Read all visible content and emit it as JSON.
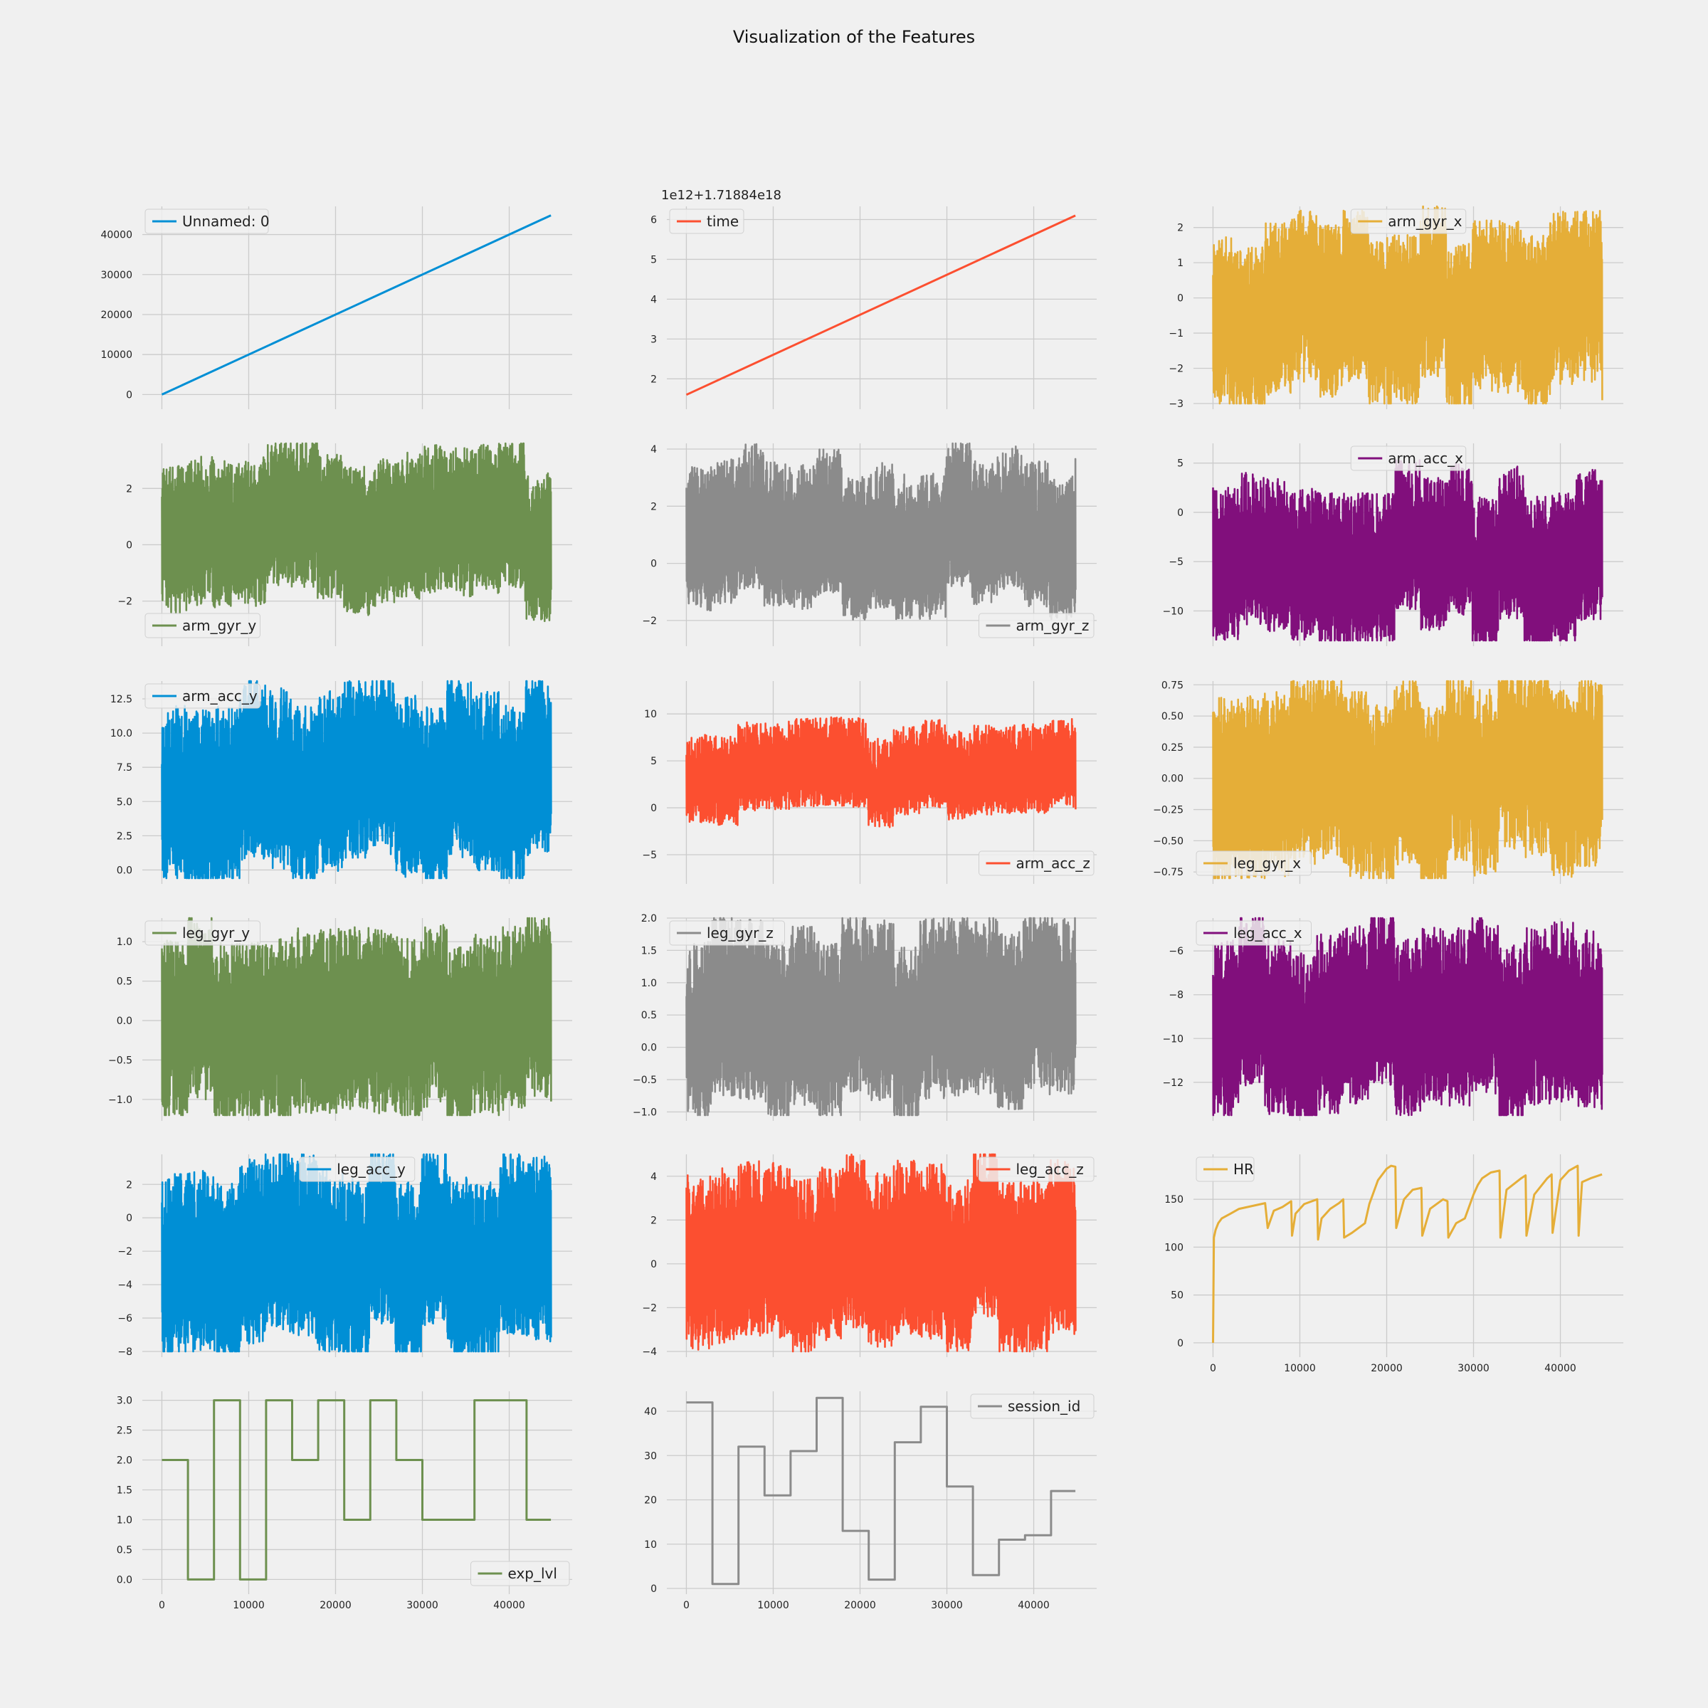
{
  "title": "Visualization of the Features",
  "x_ticks": [
    0,
    10000,
    20000,
    30000,
    40000
  ],
  "x_tick_labels": [
    "0",
    "10000",
    "20000",
    "30000",
    "40000"
  ],
  "x_range": [
    -2250,
    47250
  ],
  "chart_data": [
    {
      "id": "unnamed0",
      "type": "line",
      "row": 0,
      "col": 0,
      "series": [
        {
          "name": "Unnamed: 0"
        }
      ],
      "color": "#008fd5",
      "pattern": "linear",
      "x": [
        0,
        44800
      ],
      "y": [
        0,
        44800
      ],
      "ylim": [
        -2240,
        47040
      ],
      "yticks": [
        0,
        10000,
        20000,
        30000,
        40000
      ],
      "ytick_labels": [
        "0",
        "10000",
        "20000",
        "30000",
        "40000"
      ],
      "legend_loc": "upper left",
      "show_xticks": false
    },
    {
      "id": "time",
      "type": "line",
      "row": 0,
      "col": 1,
      "series": [
        {
          "name": "time"
        }
      ],
      "color": "#fc4f30",
      "pattern": "linear",
      "x": [
        0,
        44800
      ],
      "y": [
        1.6,
        6.1
      ],
      "ylim": [
        1.38,
        6.33
      ],
      "yticks": [
        2,
        3,
        4,
        5,
        6
      ],
      "ytick_labels": [
        "2",
        "3",
        "4",
        "5",
        "6"
      ],
      "legend_loc": "upper left",
      "offset_text": "1e12+1.71884e18",
      "show_xticks": false
    },
    {
      "id": "arm_gyr_x",
      "type": "line",
      "row": 0,
      "col": 2,
      "series": [
        {
          "name": "arm_gyr_x"
        }
      ],
      "color": "#e5ae38",
      "pattern": "noise",
      "seed": 11,
      "x": [
        0,
        44800
      ],
      "center": -0.25,
      "amp_lo": 2.6,
      "amp_hi": 2.3,
      "ylim": [
        -3.0,
        2.6
      ],
      "yticks": [
        -3,
        -2,
        -1,
        0,
        1,
        2
      ],
      "ytick_labels": [
        "−3",
        "−2",
        "−1",
        "0",
        "1",
        "2"
      ],
      "legend_loc": "upper center",
      "show_xticks": false
    },
    {
      "id": "arm_gyr_y",
      "type": "line",
      "row": 1,
      "col": 0,
      "series": [
        {
          "name": "arm_gyr_y"
        }
      ],
      "color": "#6d904f",
      "pattern": "noise",
      "seed": 23,
      "x": [
        0,
        44800
      ],
      "center": 0.4,
      "amp_lo": 2.5,
      "amp_hi": 2.8,
      "ylim": [
        -3.4,
        3.6
      ],
      "yticks": [
        -2,
        0,
        2
      ],
      "ytick_labels": [
        "−2",
        "0",
        "2"
      ],
      "legend_loc": "lower left",
      "show_xticks": false
    },
    {
      "id": "arm_gyr_z",
      "type": "line",
      "row": 1,
      "col": 1,
      "series": [
        {
          "name": "arm_gyr_z"
        }
      ],
      "color": "#8b8b8b",
      "pattern": "noise",
      "seed": 37,
      "x": [
        0,
        44800
      ],
      "center": 0.6,
      "amp_lo": 2.0,
      "amp_hi": 3.1,
      "ylim": [
        -2.7,
        4.2
      ],
      "yticks": [
        -2,
        0,
        2,
        4
      ],
      "ytick_labels": [
        "−2",
        "0",
        "2",
        "4"
      ],
      "legend_loc": "lower right",
      "show_xticks": false
    },
    {
      "id": "arm_acc_x",
      "type": "line",
      "row": 1,
      "col": 2,
      "series": [
        {
          "name": "arm_acc_x"
        }
      ],
      "color": "#810f7c",
      "pattern": "noise",
      "seed": 41,
      "x": [
        0,
        44800
      ],
      "center": -5.5,
      "amp_lo": 6.5,
      "amp_hi": 9.0,
      "ylim": [
        -13.0,
        7.0
      ],
      "yticks": [
        -10,
        -5,
        0,
        5
      ],
      "ytick_labels": [
        "−10",
        "−5",
        "0",
        "5"
      ],
      "legend_loc": "upper center",
      "show_xticks": false
    },
    {
      "id": "arm_acc_y",
      "type": "line",
      "row": 2,
      "col": 0,
      "series": [
        {
          "name": "arm_acc_y"
        }
      ],
      "color": "#008fd5",
      "pattern": "noise",
      "seed": 53,
      "x": [
        0,
        44800
      ],
      "center": 5.5,
      "amp_lo": 5.8,
      "amp_hi": 7.5,
      "ylim": [
        -0.6,
        13.8
      ],
      "yticks": [
        0,
        2.5,
        5,
        7.5,
        10,
        12.5
      ],
      "ytick_labels": [
        "0.0",
        "2.5",
        "5.0",
        "7.5",
        "10.0",
        "12.5"
      ],
      "legend_loc": "upper left",
      "show_xticks": false
    },
    {
      "id": "arm_acc_z",
      "type": "line",
      "row": 2,
      "col": 1,
      "series": [
        {
          "name": "arm_acc_z"
        }
      ],
      "color": "#fc4f30",
      "pattern": "noise",
      "seed": 67,
      "x": [
        0,
        44800
      ],
      "center": 3.0,
      "amp_lo": 4.0,
      "amp_hi": 5.5,
      "ylim": [
        -7.5,
        13.5
      ],
      "yticks": [
        -5,
        0,
        5,
        10
      ],
      "ytick_labels": [
        "−5",
        "0",
        "5",
        "10"
      ],
      "legend_loc": "lower right",
      "show_xticks": false
    },
    {
      "id": "leg_gyr_x",
      "type": "line",
      "row": 2,
      "col": 2,
      "series": [
        {
          "name": "leg_gyr_x"
        }
      ],
      "color": "#e5ae38",
      "pattern": "noise",
      "seed": 71,
      "x": [
        0,
        44800
      ],
      "center": 0.05,
      "amp_lo": 0.8,
      "amp_hi": 0.7,
      "ylim": [
        -0.8,
        0.78
      ],
      "yticks": [
        -0.75,
        -0.5,
        -0.25,
        0,
        0.25,
        0.5,
        0.75
      ],
      "ytick_labels": [
        "−0.75",
        "−0.50",
        "−0.25",
        "0.00",
        "0.25",
        "0.50",
        "0.75"
      ],
      "legend_loc": "lower left",
      "show_xticks": false
    },
    {
      "id": "leg_gyr_y",
      "type": "line",
      "row": 3,
      "col": 0,
      "series": [
        {
          "name": "leg_gyr_y"
        }
      ],
      "color": "#6d904f",
      "pattern": "noise",
      "seed": 83,
      "x": [
        0,
        44800
      ],
      "center": 0.0,
      "amp_lo": 1.15,
      "amp_hi": 1.2,
      "ylim": [
        -1.2,
        1.3
      ],
      "yticks": [
        -1.0,
        -0.5,
        0,
        0.5,
        1.0
      ],
      "ytick_labels": [
        "−1.0",
        "−0.5",
        "0.0",
        "0.5",
        "1.0"
      ],
      "legend_loc": "upper left",
      "show_xticks": false
    },
    {
      "id": "leg_gyr_z",
      "type": "line",
      "row": 3,
      "col": 1,
      "series": [
        {
          "name": "leg_gyr_z"
        }
      ],
      "color": "#8b8b8b",
      "pattern": "noise",
      "seed": 97,
      "x": [
        0,
        44800
      ],
      "center": 0.35,
      "amp_lo": 1.3,
      "amp_hi": 1.5,
      "ylim": [
        -1.05,
        2.0
      ],
      "yticks": [
        -1.0,
        -0.5,
        0,
        0.5,
        1.0,
        1.5,
        2.0
      ],
      "ytick_labels": [
        "−1.0",
        "−0.5",
        "0.0",
        "0.5",
        "1.0",
        "1.5",
        "2.0"
      ],
      "legend_loc": "upper left",
      "show_xticks": false
    },
    {
      "id": "leg_acc_x",
      "type": "line",
      "row": 3,
      "col": 2,
      "series": [
        {
          "name": "leg_acc_x"
        }
      ],
      "color": "#810f7c",
      "pattern": "noise",
      "seed": 101,
      "x": [
        0,
        44800
      ],
      "center": -9.5,
      "amp_lo": 3.7,
      "amp_hi": 4.5,
      "ylim": [
        -13.5,
        -4.5
      ],
      "yticks": [
        -12,
        -10,
        -8,
        -6
      ],
      "ytick_labels": [
        "−12",
        "−10",
        "−8",
        "−6"
      ],
      "legend_loc": "upper left",
      "show_xticks": false
    },
    {
      "id": "leg_acc_y",
      "type": "line",
      "row": 4,
      "col": 0,
      "series": [
        {
          "name": "leg_acc_y"
        }
      ],
      "color": "#008fd5",
      "pattern": "noise",
      "seed": 113,
      "x": [
        0,
        44800
      ],
      "center": -2.5,
      "amp_lo": 5.3,
      "amp_hi": 5.8,
      "ylim": [
        -8.0,
        3.8
      ],
      "yticks": [
        -8,
        -6,
        -4,
        -2,
        0,
        2
      ],
      "ytick_labels": [
        "−8",
        "−6",
        "−4",
        "−2",
        "0",
        "2"
      ],
      "legend_loc": "upper center",
      "show_xticks": false
    },
    {
      "id": "leg_acc_z",
      "type": "line",
      "row": 4,
      "col": 1,
      "series": [
        {
          "name": "leg_acc_z"
        }
      ],
      "color": "#fc4f30",
      "pattern": "noise",
      "seed": 127,
      "x": [
        0,
        44800
      ],
      "center": 0.0,
      "amp_lo": 3.5,
      "amp_hi": 4.5,
      "ylim": [
        -4.0,
        5.0
      ],
      "yticks": [
        -4,
        -2,
        0,
        2,
        4
      ],
      "ytick_labels": [
        "−4",
        "−2",
        "0",
        "2",
        "4"
      ],
      "legend_loc": "upper right",
      "show_xticks": false
    },
    {
      "id": "hr",
      "type": "line",
      "row": 4,
      "col": 2,
      "series": [
        {
          "name": "HR"
        }
      ],
      "color": "#e5ae38",
      "pattern": "polyline",
      "x": [
        0,
        100,
        300,
        600,
        1000,
        2000,
        3000,
        4500,
        6000,
        6300,
        7000,
        8000,
        9000,
        9100,
        9500,
        10500,
        12000,
        12100,
        12500,
        13500,
        14500,
        15000,
        15100,
        16000,
        17500,
        18000,
        19000,
        20000,
        20500,
        21000,
        21100,
        22000,
        23000,
        24000,
        24100,
        25000,
        26500,
        27000,
        27100,
        28000,
        29000,
        30000,
        30500,
        31000,
        32000,
        33000,
        33100,
        33800,
        35500,
        36000,
        36100,
        37000,
        38500,
        39000,
        39100,
        40000,
        41000,
        42000,
        42100,
        42500,
        43500,
        44800
      ],
      "y": [
        0,
        110,
        118,
        125,
        130,
        135,
        140,
        143,
        146,
        120,
        138,
        142,
        148,
        112,
        135,
        145,
        150,
        108,
        130,
        140,
        146,
        150,
        110,
        115,
        125,
        145,
        170,
        182,
        185,
        184,
        120,
        150,
        160,
        162,
        112,
        140,
        150,
        148,
        110,
        125,
        130,
        155,
        165,
        172,
        178,
        180,
        110,
        160,
        172,
        175,
        112,
        155,
        172,
        176,
        115,
        170,
        180,
        185,
        112,
        168,
        172,
        176
      ],
      "ylim": [
        -9,
        197
      ],
      "yticks": [
        0,
        50,
        100,
        150
      ],
      "ytick_labels": [
        "0",
        "50",
        "100",
        "150"
      ],
      "legend_loc": "upper left",
      "show_xticks": true
    },
    {
      "id": "exp_lvl",
      "type": "line",
      "row": 5,
      "col": 0,
      "series": [
        {
          "name": "exp_lvl"
        }
      ],
      "color": "#6d904f",
      "pattern": "step",
      "x": [
        0,
        3000,
        3000,
        6000,
        6000,
        9000,
        9000,
        12000,
        12000,
        15000,
        15000,
        18000,
        18000,
        21000,
        21000,
        24000,
        24000,
        27000,
        27000,
        30000,
        30000,
        36000,
        36000,
        42000,
        42000,
        44800
      ],
      "y": [
        2,
        2,
        0,
        0,
        3,
        3,
        0,
        0,
        3,
        3,
        2,
        2,
        3,
        3,
        1,
        1,
        3,
        3,
        2,
        2,
        1,
        1,
        3,
        3,
        1,
        1
      ],
      "ylim": [
        -0.15,
        3.15
      ],
      "yticks": [
        0,
        0.5,
        1.0,
        1.5,
        2.0,
        2.5,
        3.0
      ],
      "ytick_labels": [
        "0.0",
        "0.5",
        "1.0",
        "1.5",
        "2.0",
        "2.5",
        "3.0"
      ],
      "legend_loc": "lower right",
      "show_xticks": true
    },
    {
      "id": "session_id",
      "type": "line",
      "row": 5,
      "col": 1,
      "series": [
        {
          "name": "session_id"
        }
      ],
      "color": "#8b8b8b",
      "pattern": "step",
      "x": [
        0,
        3000,
        3000,
        6000,
        6000,
        9000,
        9000,
        12000,
        12000,
        15000,
        15000,
        18000,
        18000,
        21000,
        21000,
        24000,
        24000,
        27000,
        27000,
        30000,
        30000,
        33000,
        33000,
        36000,
        36000,
        39000,
        39000,
        42000,
        42000,
        44800
      ],
      "y": [
        42,
        42,
        1,
        1,
        32,
        32,
        21,
        21,
        31,
        31,
        43,
        43,
        13,
        13,
        2,
        2,
        33,
        33,
        41,
        41,
        23,
        23,
        3,
        3,
        11,
        11,
        12,
        12,
        22,
        22
      ],
      "ylim": [
        0,
        44.5
      ],
      "yticks": [
        0,
        10,
        20,
        30,
        40
      ],
      "ytick_labels": [
        "0",
        "10",
        "20",
        "30",
        "40"
      ],
      "legend_loc": "upper right",
      "show_xticks": true
    }
  ]
}
